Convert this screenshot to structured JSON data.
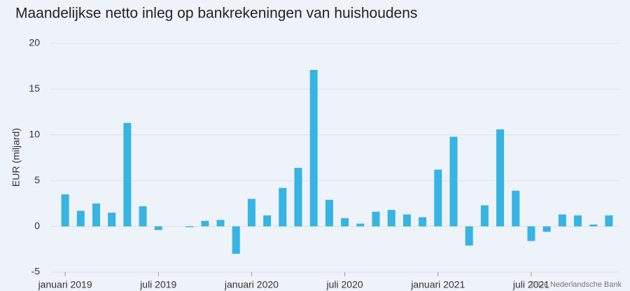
{
  "chart_data": {
    "type": "bar",
    "title": "Maandelijkse netto inleg op bankrekeningen van huishoudens",
    "y_label": "EUR (miljard)",
    "credit": "© De Nederlandsche Bank",
    "categories": [
      "januari 2019",
      null,
      null,
      null,
      null,
      null,
      "juli 2019",
      null,
      null,
      null,
      null,
      null,
      "januari 2020",
      null,
      null,
      null,
      null,
      null,
      "juli 2020",
      null,
      null,
      null,
      null,
      null,
      "januari 2021",
      null,
      null,
      null,
      null,
      null,
      "juli 2021",
      null,
      null,
      null,
      null,
      null
    ],
    "values": [
      3.5,
      1.7,
      2.5,
      1.5,
      11.3,
      2.2,
      -0.4,
      0,
      -0.1,
      0.6,
      0.7,
      -3.0,
      3.0,
      1.2,
      4.2,
      6.4,
      17.1,
      2.9,
      0.9,
      0.3,
      1.6,
      1.8,
      1.3,
      1.0,
      6.2,
      9.8,
      -2.1,
      2.3,
      10.6,
      3.9,
      -1.6,
      -0.6,
      1.3,
      1.2,
      0.2,
      1.2
    ],
    "color": "#36b4e3",
    "ylim": [
      -5,
      20
    ],
    "yticks": [
      -5,
      0,
      5,
      10,
      15,
      20
    ],
    "grid": true
  }
}
